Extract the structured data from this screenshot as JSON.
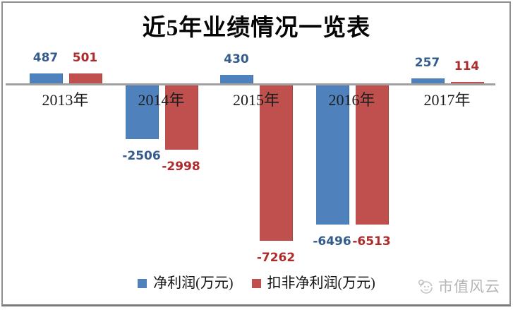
{
  "title": "近5年业绩情况一览表",
  "watermark": {
    "text": "市值风云",
    "icon": "cloud-logo-icon",
    "color": "#b5b5b5"
  },
  "chart_data": {
    "type": "bar",
    "categories": [
      "2013年",
      "2014年",
      "2015年",
      "2016年",
      "2017年"
    ],
    "series": [
      {
        "key": "net-profit",
        "name": "净利润(万元)",
        "color": "#4F81BD",
        "label_color": "#335C8D",
        "values": [
          487,
          -2506,
          430,
          -6496,
          257
        ]
      },
      {
        "key": "deducted-net-profit",
        "name": "扣非净利润(万元)",
        "color": "#C0504D",
        "label_color": "#AE2B2B",
        "values": [
          501,
          -2998,
          -7262,
          -6513,
          114
        ]
      }
    ],
    "baseline": 0,
    "ylim": [
      -7600,
      900
    ],
    "grid": false,
    "data_labels": true,
    "legend_position": "bottom"
  }
}
